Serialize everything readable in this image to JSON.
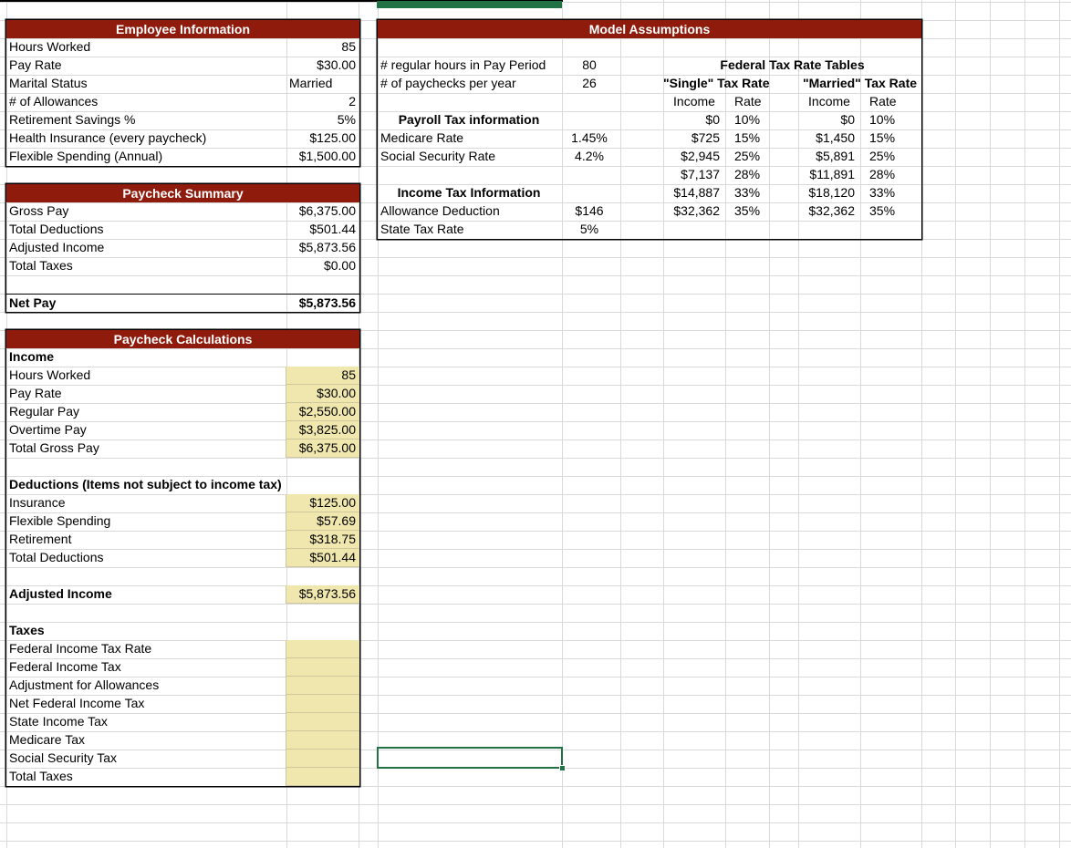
{
  "colors": {
    "header_bg": "#8E1B0B",
    "header_text": "#FFFFFF",
    "input_bg": "#EFE7AD",
    "grid": "#D9D9D9",
    "border": "#000000",
    "selection": "#217346"
  },
  "employee_information": {
    "title": "Employee Information",
    "rows": [
      {
        "label": "Hours Worked",
        "value": "85"
      },
      {
        "label": "Pay Rate",
        "value": "$30.00"
      },
      {
        "label": "Marital Status",
        "value": "Married",
        "left": true
      },
      {
        "label": "# of Allowances",
        "value": "2"
      },
      {
        "label": "Retirement Savings %",
        "value": "5%"
      },
      {
        "label": "Health Insurance (every paycheck)",
        "value": "$125.00"
      },
      {
        "label": "Flexible Spending (Annual)",
        "value": "$1,500.00"
      }
    ]
  },
  "paycheck_summary": {
    "title": "Paycheck Summary",
    "rows": [
      {
        "label": "Gross Pay",
        "value": "$6,375.00"
      },
      {
        "label": "Total Deductions",
        "value": "$501.44"
      },
      {
        "label": "Adjusted Income",
        "value": "$5,873.56"
      },
      {
        "label": "Total Taxes",
        "value": "$0.00"
      },
      {
        "spacer": true
      }
    ],
    "net_pay": {
      "label": "Net Pay",
      "value": "$5,873.56"
    }
  },
  "paycheck_calculations": {
    "title": "Paycheck Calculations",
    "rows": [
      {
        "label": "Income",
        "bold": true
      },
      {
        "label": "Hours Worked",
        "value": "85",
        "input": true
      },
      {
        "label": "Pay Rate",
        "value": "$30.00",
        "input": true
      },
      {
        "label": "Regular Pay",
        "value": "$2,550.00",
        "input": true
      },
      {
        "label": "Overtime Pay",
        "value": "$3,825.00",
        "input": true
      },
      {
        "label": "Total Gross Pay",
        "value": "$6,375.00",
        "input": true
      },
      {
        "spacer": true
      },
      {
        "label": "Deductions (Items not subject to income tax)",
        "bold": true
      },
      {
        "label": "Insurance",
        "value": "$125.00",
        "input": true
      },
      {
        "label": "Flexible Spending",
        "value": "$57.69",
        "input": true
      },
      {
        "label": "Retirement",
        "value": "$318.75",
        "input": true
      },
      {
        "label": "Total Deductions",
        "value": "$501.44",
        "input": true
      },
      {
        "spacer": true
      },
      {
        "label": "Adjusted Income",
        "value": "$5,873.56",
        "bold": true,
        "input": true
      },
      {
        "spacer": true
      },
      {
        "label": "Taxes",
        "bold": true
      },
      {
        "label": "Federal Income Tax Rate",
        "value": "",
        "input": true
      },
      {
        "label": "Federal Income Tax",
        "value": "",
        "input": true
      },
      {
        "label": "Adjustment for Allowances",
        "value": "",
        "input": true
      },
      {
        "label": "Net Federal Income Tax",
        "value": "",
        "input": true
      },
      {
        "label": "State Income Tax",
        "value": "",
        "input": true
      },
      {
        "label": "Medicare Tax",
        "value": "",
        "input": true
      },
      {
        "label": "Social Security Tax",
        "value": "",
        "input": true
      },
      {
        "label": "Total Taxes",
        "value": "",
        "input": true
      }
    ]
  },
  "model_assumptions": {
    "title": "Model Assumptions",
    "rows": [
      {
        "spacer": true
      },
      {
        "label": "# regular hours in Pay Period",
        "value": "80"
      },
      {
        "label": "# of paychecks per year",
        "value": "26"
      },
      {
        "spacer": true
      },
      {
        "label": "Payroll Tax information",
        "center": true,
        "bold": true
      },
      {
        "label": "Medicare Rate",
        "value": "1.45%"
      },
      {
        "label": "Social Security Rate",
        "value": "4.2%"
      },
      {
        "spacer": true
      },
      {
        "label": "Income Tax Information",
        "center": true,
        "bold": true
      },
      {
        "label": "Allowance Deduction",
        "value": "$146"
      },
      {
        "label": "State Tax Rate",
        "value": "5%"
      }
    ]
  },
  "federal_tax_tables": {
    "title": "Federal Tax Rate Tables",
    "single_header": "\"Single\" Tax Rate",
    "married_header": "\"Married\" Tax Rate",
    "income_col": "Income",
    "rate_col": "Rate",
    "rows": [
      {
        "si": "$0",
        "sr": "10%",
        "mi": "$0",
        "mr": "10%"
      },
      {
        "si": "$725",
        "sr": "15%",
        "mi": "$1,450",
        "mr": "15%"
      },
      {
        "si": "$2,945",
        "sr": "25%",
        "mi": "$5,891",
        "mr": "25%"
      },
      {
        "si": "$7,137",
        "sr": "28%",
        "mi": "$11,891",
        "mr": "28%"
      },
      {
        "si": "$14,887",
        "sr": "33%",
        "mi": "$18,120",
        "mr": "33%"
      },
      {
        "si": "$32,362",
        "sr": "35%",
        "mi": "$32,362",
        "mr": "35%"
      }
    ]
  }
}
